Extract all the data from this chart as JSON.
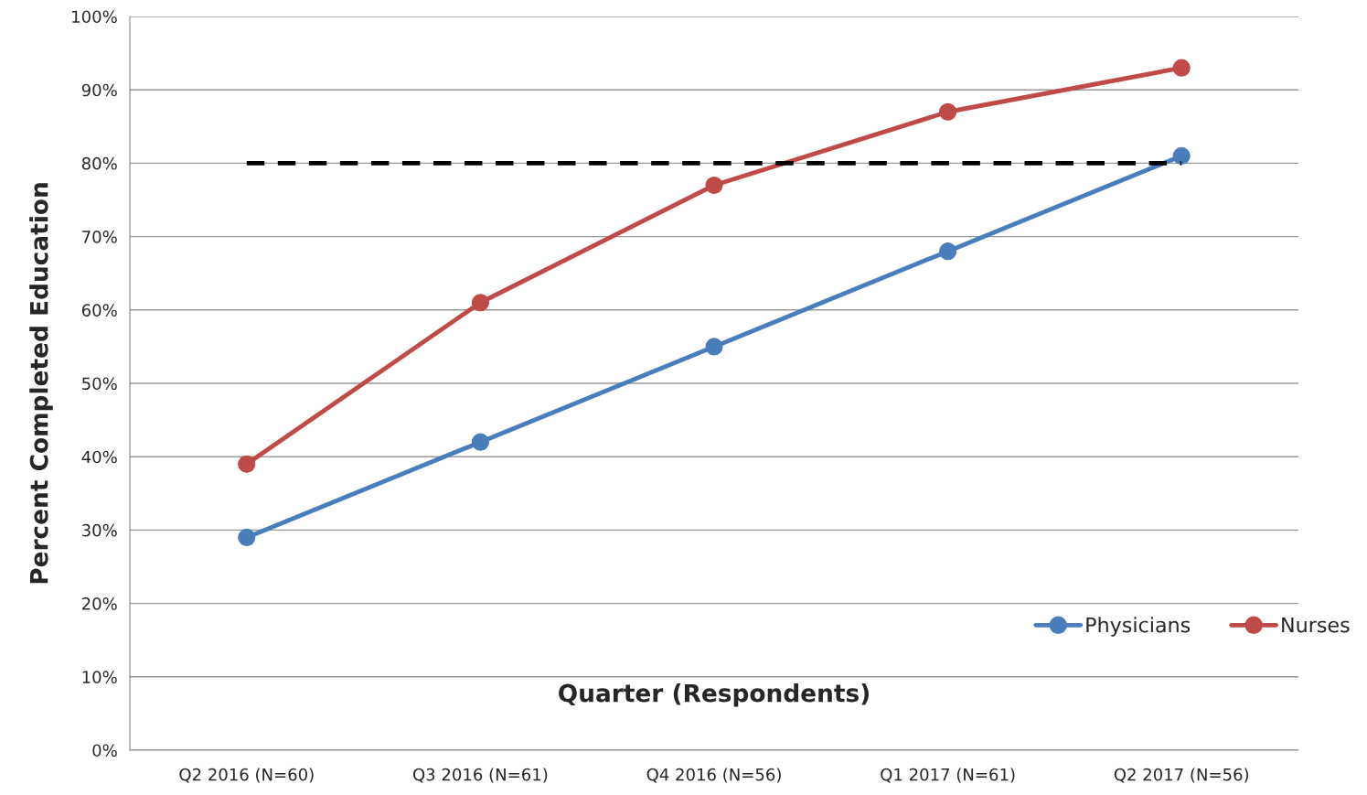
{
  "chart_data": {
    "type": "line",
    "xlabel": "Quarter (Respondents)",
    "ylabel": "Percent Completed Education",
    "categories": [
      "Q2 2016 (N=60)",
      "Q3 2016 (N=61)",
      "Q4 2016 (N=56)",
      "Q1 2017 (N=61)",
      "Q2 2017 (N=56)"
    ],
    "series": [
      {
        "name": "Physicians",
        "color": "#4a7ebb",
        "values": [
          29,
          42,
          55,
          68,
          81
        ]
      },
      {
        "name": "Nurses",
        "color": "#be4b48",
        "values": [
          39,
          61,
          77,
          87,
          93
        ]
      },
      {
        "type": "line",
        "color": "#000000",
        "line_style": "dashed",
        "marker": "none",
        "values": [
          80,
          80,
          80,
          80,
          80
        ]
      }
    ],
    "ylim": [
      0,
      100
    ],
    "yticks": [
      {
        "value": 0,
        "label": "0%"
      },
      {
        "value": 10,
        "label": "10%"
      },
      {
        "value": 20,
        "label": "20%"
      },
      {
        "value": 30,
        "label": "30%"
      },
      {
        "value": 40,
        "label": "40%"
      },
      {
        "value": 50,
        "label": "50%"
      },
      {
        "value": 60,
        "label": "60%"
      },
      {
        "value": 70,
        "label": "70%"
      },
      {
        "value": 80,
        "label": "80%"
      },
      {
        "value": 90,
        "label": "90%"
      },
      {
        "value": 100,
        "label": "100%"
      }
    ],
    "grid": "y",
    "legend": "bottom right",
    "marker": "circle",
    "line_style": "solid"
  }
}
